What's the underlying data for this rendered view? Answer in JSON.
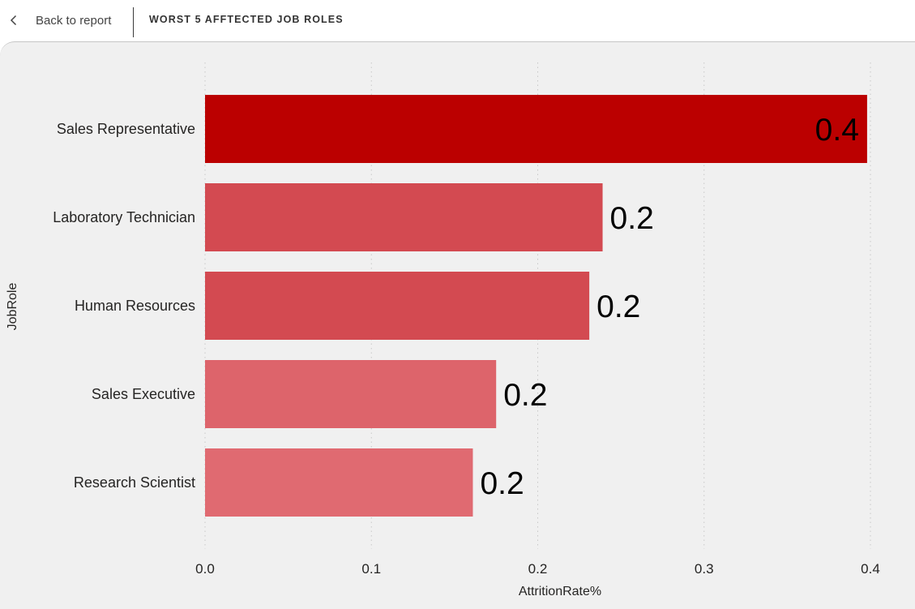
{
  "header": {
    "back_label": "Back to report",
    "title": "WORST 5 AFFTECTED JOB ROLES",
    "back_icon": "chevron-left-icon"
  },
  "chart_data": {
    "type": "bar",
    "orientation": "horizontal",
    "categories": [
      "Sales Representative",
      "Laboratory Technician",
      "Human Resources",
      "Sales Executive",
      "Research Scientist"
    ],
    "values": [
      0.398,
      0.239,
      0.231,
      0.175,
      0.161
    ],
    "data_labels": [
      "0.4",
      "0.2",
      "0.2",
      "0.2",
      "0.2"
    ],
    "colors": [
      "#bb0000",
      "#d34a51",
      "#d34a51",
      "#dd646b",
      "#e06a71"
    ],
    "xlabel": "AttritionRate%",
    "ylabel": "JobRole",
    "xlim": [
      0,
      0.4
    ],
    "xticks": [
      0.0,
      0.1,
      0.2,
      0.3,
      0.4
    ],
    "xtick_labels": [
      "0.0",
      "0.1",
      "0.2",
      "0.3",
      "0.4"
    ],
    "grid": "vertical-dotted",
    "legend": "none"
  }
}
